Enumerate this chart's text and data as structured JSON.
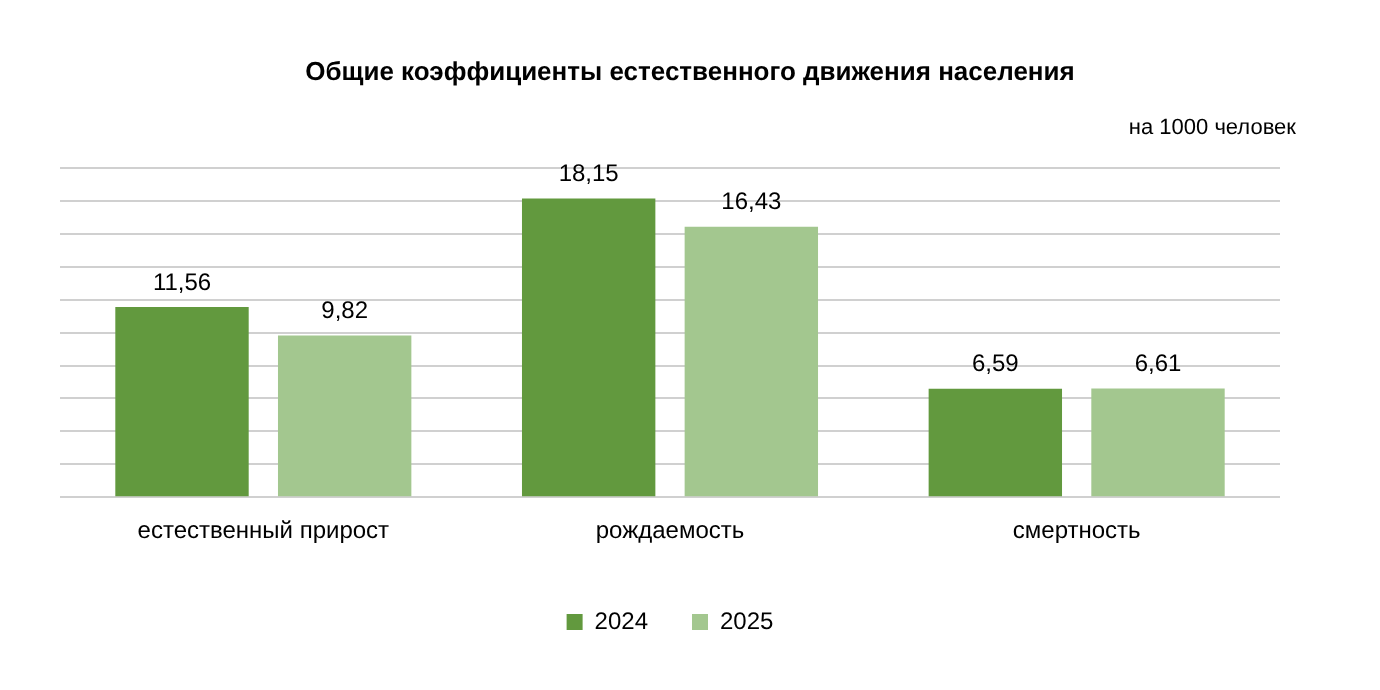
{
  "chart_data": {
    "type": "bar",
    "title": "Общие коэффициенты естественного движения населения",
    "annotations": [
      "на 1000 человек"
    ],
    "categories": [
      "естественный прирост",
      "рождаемость",
      "смертность"
    ],
    "series": [
      {
        "name": "2024",
        "color": "#62993e",
        "values": [
          11.56,
          18.15,
          6.59
        ],
        "value_labels": [
          "11,56",
          "18,15",
          "6,59"
        ]
      },
      {
        "name": "2025",
        "color": "#a3c78f",
        "values": [
          9.82,
          16.43,
          6.61
        ],
        "value_labels": [
          "9,82",
          "16,43",
          "6,61"
        ]
      }
    ],
    "relative": false,
    "grid": "y",
    "legend": "bottom"
  }
}
